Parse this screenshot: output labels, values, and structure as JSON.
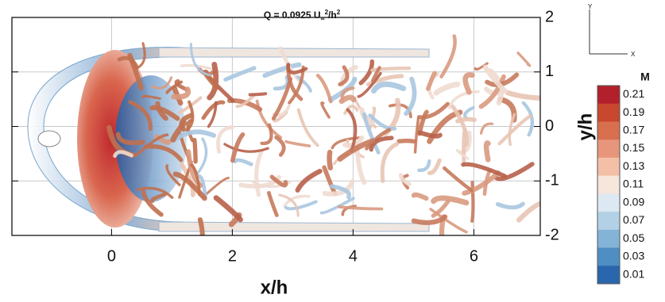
{
  "chart_data": {
    "type": "isosurface",
    "title_parts": [
      "Q = 0.0925 U",
      "∞",
      "2",
      "/h",
      "2"
    ],
    "xlabel": "x/h",
    "ylabel": "y/h",
    "xlim": [
      -1.65,
      7.1
    ],
    "ylim": [
      -2,
      2
    ],
    "xticks": [
      0,
      2,
      4,
      6
    ],
    "yticks": [
      2,
      1,
      0,
      -1,
      -2
    ],
    "grid": true,
    "colorbar": {
      "label": "M",
      "ticks": [
        0.21,
        0.19,
        0.17,
        0.15,
        0.13,
        0.11,
        0.09,
        0.07,
        0.05,
        0.03,
        0.01
      ],
      "colors": [
        "#b2202b",
        "#c9472f",
        "#d86f4f",
        "#e7957b",
        "#f3bfa7",
        "#f7e6dc",
        "#dde9f2",
        "#b3d1e6",
        "#83b3d6",
        "#4f8ec3",
        "#2a66ad"
      ]
    },
    "axis_triad": {
      "y": "Y",
      "x": "X"
    }
  }
}
